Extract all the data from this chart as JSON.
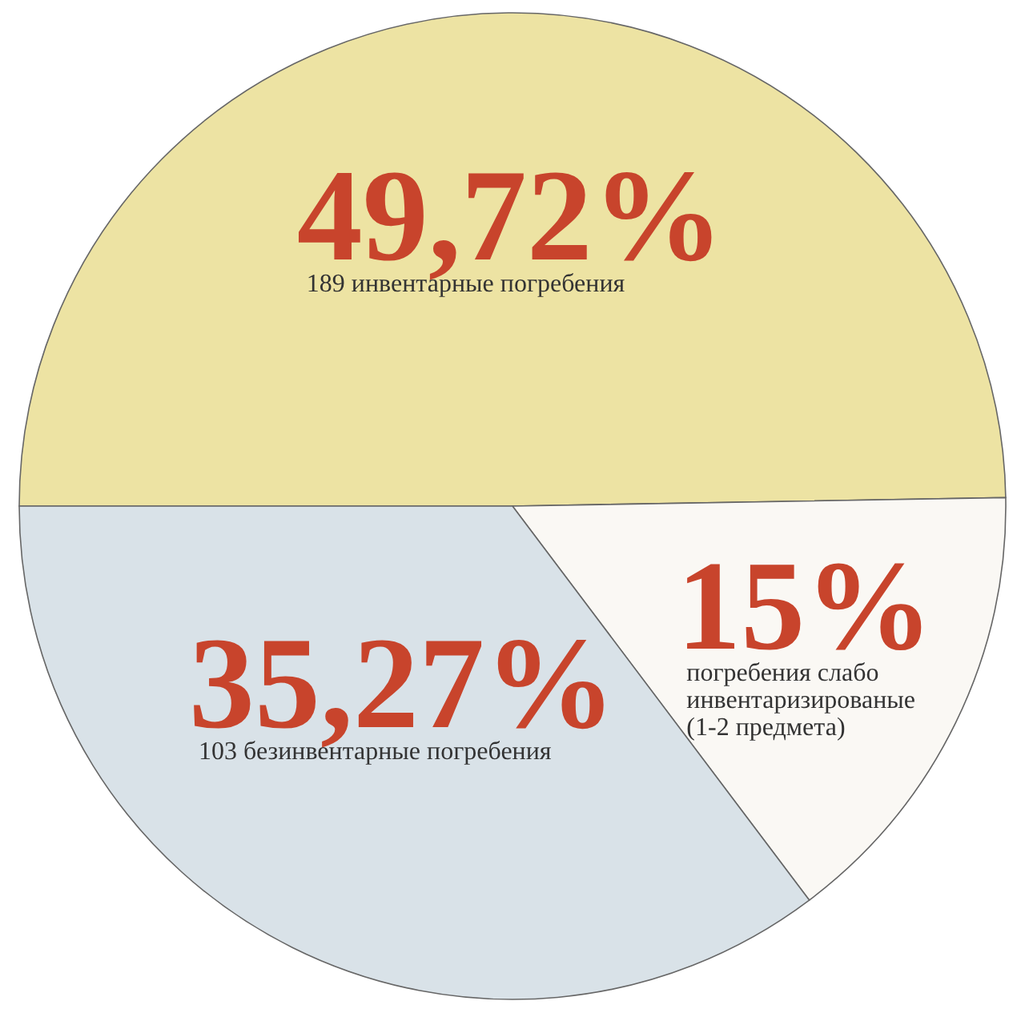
{
  "chart_data": {
    "type": "pie",
    "categories": [
      "189 инвентарные погребения",
      "погребения слабо инвентаризированые (1-2 предмета)",
      "103 безинвентарные погребения"
    ],
    "values": [
      49.72,
      15,
      35.27
    ],
    "colors": [
      "#ede3a3",
      "#faf8f4",
      "#d9e2e8"
    ],
    "value_labels": [
      "49,72%",
      "15%",
      "35,27%"
    ]
  }
}
